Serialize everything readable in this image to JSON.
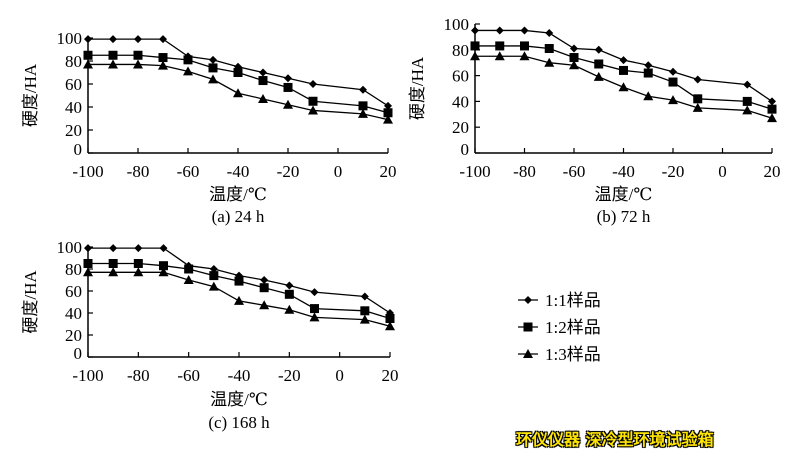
{
  "chart_data": [
    {
      "type": "line",
      "caption": "(a) 24 h",
      "xlabel": "温度/℃",
      "ylabel": "硬度/HA",
      "xlim": [
        -100,
        20
      ],
      "ylim": [
        0,
        100
      ],
      "xticks": [
        -100,
        -80,
        -60,
        -40,
        -20,
        0,
        20
      ],
      "yticks": [
        0,
        20,
        40,
        60,
        80,
        100
      ],
      "x": [
        -100,
        -90,
        -80,
        -70,
        -60,
        -50,
        -40,
        -30,
        -20,
        -10,
        10,
        20
      ],
      "series": [
        {
          "name": "1:1样品",
          "marker": "diamond",
          "values": [
            99,
            99,
            99,
            99,
            84,
            81,
            75,
            70,
            65,
            60,
            55,
            41
          ]
        },
        {
          "name": "1:2样品",
          "marker": "square",
          "values": [
            85,
            85,
            85,
            83,
            81,
            74,
            70,
            63,
            57,
            45,
            41,
            35
          ]
        },
        {
          "name": "1:3样品",
          "marker": "triangle",
          "values": [
            77,
            77,
            77,
            76,
            71,
            64,
            52,
            47,
            42,
            37,
            34,
            29
          ]
        }
      ]
    },
    {
      "type": "line",
      "caption": "(b) 72 h",
      "xlabel": "温度/℃",
      "ylabel": "硬度/HA",
      "xlim": [
        -100,
        20
      ],
      "ylim": [
        0,
        100
      ],
      "xticks": [
        -100,
        -80,
        -60,
        -40,
        -20,
        0,
        20
      ],
      "yticks": [
        0,
        20,
        40,
        60,
        80,
        100
      ],
      "x": [
        -100,
        -90,
        -80,
        -70,
        -60,
        -50,
        -40,
        -30,
        -20,
        -10,
        10,
        20
      ],
      "series": [
        {
          "name": "1:1样品",
          "marker": "diamond",
          "values": [
            95,
            95,
            95,
            93,
            81,
            80,
            72,
            68,
            63,
            57,
            53,
            40
          ]
        },
        {
          "name": "1:2样品",
          "marker": "square",
          "values": [
            83,
            83,
            83,
            81,
            74,
            69,
            64,
            62,
            55,
            42,
            40,
            34
          ]
        },
        {
          "name": "1:3样品",
          "marker": "triangle",
          "values": [
            75,
            75,
            75,
            70,
            68,
            59,
            51,
            44,
            41,
            35,
            33,
            27
          ]
        }
      ]
    },
    {
      "type": "line",
      "caption": "(c) 168 h",
      "xlabel": "温度/℃",
      "ylabel": "硬度/HA",
      "xlim": [
        -100,
        20
      ],
      "ylim": [
        0,
        100
      ],
      "xticks": [
        -100,
        -80,
        -60,
        -40,
        -20,
        0,
        20
      ],
      "yticks": [
        0,
        20,
        40,
        60,
        80,
        100
      ],
      "x": [
        -100,
        -90,
        -80,
        -70,
        -60,
        -50,
        -40,
        -30,
        -20,
        -10,
        10,
        20
      ],
      "series": [
        {
          "name": "1:1样品",
          "marker": "diamond",
          "values": [
            99,
            99,
            99,
            99,
            83,
            80,
            74,
            70,
            65,
            59,
            55,
            40
          ]
        },
        {
          "name": "1:2样品",
          "marker": "square",
          "values": [
            85,
            85,
            85,
            83,
            80,
            74,
            69,
            63,
            57,
            44,
            42,
            35
          ]
        },
        {
          "name": "1:3样品",
          "marker": "triangle",
          "values": [
            77,
            77,
            77,
            77,
            70,
            64,
            51,
            47,
            43,
            36,
            34,
            28
          ]
        }
      ]
    }
  ],
  "legend": {
    "placement": "bottom-right",
    "items": [
      {
        "label": "1:1样品",
        "marker": "diamond"
      },
      {
        "label": "1:2样品",
        "marker": "square"
      },
      {
        "label": "1:3样品",
        "marker": "triangle"
      }
    ]
  },
  "watermark": "环仪仪器 深冷型环境试验箱",
  "colors": {
    "line": "#000000",
    "background": "#ffffff",
    "watermark": "#ffe600"
  }
}
